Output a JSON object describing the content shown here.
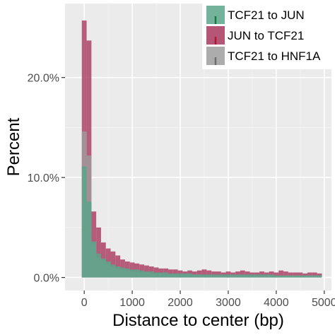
{
  "chart_data": {
    "type": "histogram",
    "xlabel": "Distance to center (bp)",
    "ylabel": "Percent",
    "x_ticks": [
      0,
      1000,
      2000,
      3000,
      4000,
      5000
    ],
    "x_tick_labels": [
      "0",
      "1000",
      "2000",
      "3000",
      "4000",
      "5000"
    ],
    "y_ticks": [
      0,
      10,
      20
    ],
    "y_tick_labels": [
      "0.0%",
      "10.0%",
      "20.0%"
    ],
    "xlim": [
      -400,
      5150
    ],
    "ylim": [
      -1.3,
      27.4
    ],
    "bin_width": 100,
    "bin_starts": [
      -50,
      50,
      150,
      250,
      350,
      450,
      550,
      650,
      750,
      850,
      950,
      1050,
      1150,
      1250,
      1350,
      1450,
      1550,
      1650,
      1750,
      1850,
      1950,
      2050,
      2150,
      2250,
      2350,
      2450,
      2550,
      2650,
      2750,
      2850,
      2950,
      3050,
      3150,
      3250,
      3350,
      3450,
      3550,
      3650,
      3750,
      3850,
      3950,
      4050,
      4150,
      4250,
      4350,
      4450,
      4550,
      4650,
      4750,
      4850
    ],
    "grid": true,
    "legend_position": "top-right",
    "series": [
      {
        "name": "TCF21 to JUN",
        "color": "#5aa58a",
        "values": [
          11.1,
          7.6,
          3.6,
          2.4,
          1.9,
          1.6,
          1.3,
          1.1,
          1.0,
          0.9,
          0.8,
          0.8,
          0.7,
          0.6,
          0.6,
          0.5,
          0.5,
          0.5,
          0.4,
          0.4,
          0.4,
          0.4,
          0.4,
          0.3,
          0.3,
          0.3,
          0.3,
          0.3,
          0.3,
          0.3,
          0.3,
          0.3,
          0.3,
          0.3,
          0.3,
          0.3,
          0.3,
          0.3,
          0.3,
          0.3,
          0.2,
          0.2,
          0.2,
          0.2,
          0.2,
          0.2,
          0.2,
          0.2,
          0.2,
          0.2
        ]
      },
      {
        "name": "JUN to TCF21",
        "color": "#a8385f",
        "values": [
          25.7,
          23.7,
          6.6,
          5.0,
          3.5,
          2.9,
          2.6,
          2.2,
          1.8,
          1.6,
          1.5,
          1.4,
          1.3,
          1.2,
          1.1,
          1.0,
          0.9,
          0.9,
          0.8,
          0.8,
          0.7,
          0.6,
          0.7,
          0.6,
          0.7,
          0.8,
          0.7,
          0.6,
          0.6,
          0.5,
          0.6,
          0.5,
          0.6,
          0.7,
          0.6,
          0.5,
          0.5,
          0.6,
          0.5,
          0.6,
          0.5,
          0.7,
          0.6,
          0.5,
          0.5,
          0.5,
          0.4,
          0.5,
          0.5,
          0.4
        ]
      },
      {
        "name": "TCF21 to HNF1A",
        "color": "#9e9e9e",
        "values": [
          14.6,
          12.2,
          3.4,
          2.0,
          1.7,
          1.4,
          1.1,
          0.9,
          0.8,
          0.7,
          0.6,
          0.6,
          0.5,
          0.5,
          0.4,
          0.4,
          0.4,
          0.3,
          0.3,
          0.3,
          0.3,
          0.3,
          0.3,
          0.3,
          0.3,
          0.2,
          0.2,
          0.2,
          0.2,
          0.2,
          0.2,
          0.2,
          0.2,
          0.2,
          0.2,
          0.2,
          0.2,
          0.2,
          0.2,
          0.2,
          0.2,
          0.2,
          0.2,
          0.2,
          0.2,
          0.2,
          0.2,
          0.2,
          0.2,
          0.2
        ]
      }
    ]
  }
}
